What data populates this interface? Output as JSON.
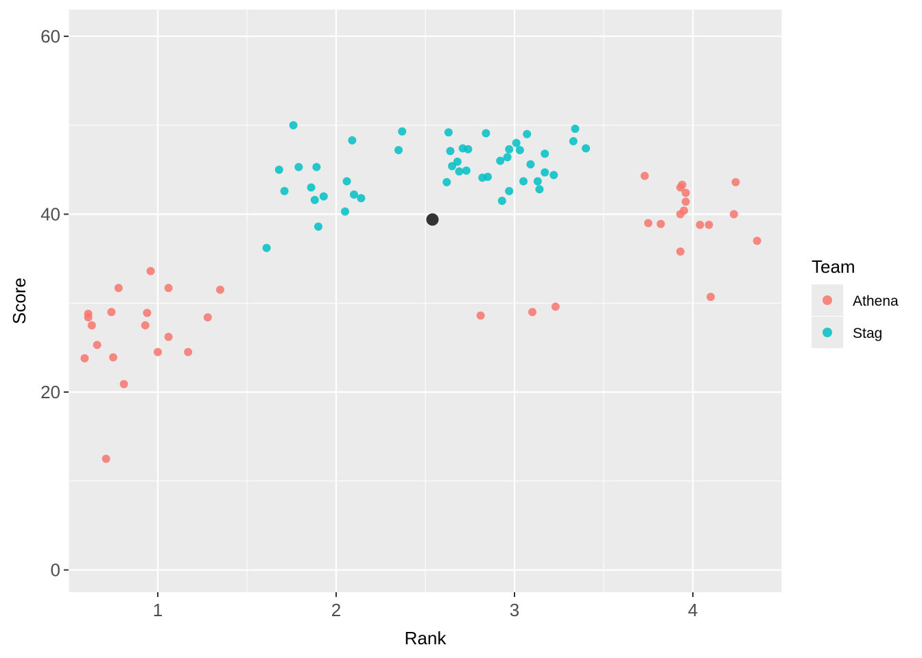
{
  "chart_data": {
    "type": "scatter",
    "xlabel": "Rank",
    "ylabel": "Score",
    "xlim": [
      0.5,
      4.5
    ],
    "ylim": [
      -2.5,
      63
    ],
    "x_ticks": [
      1,
      2,
      3,
      4
    ],
    "x_tick_labels": [
      "1",
      "2",
      "3",
      "4"
    ],
    "y_ticks": [
      0,
      20,
      40,
      60
    ],
    "y_tick_labels": [
      "0",
      "20",
      "40",
      "60"
    ],
    "grid": true,
    "background": "#ebebeb",
    "legend": {
      "title": "Team",
      "position": "right",
      "entries": [
        {
          "label": "Athena",
          "color": "#f8766d"
        },
        {
          "label": "Stag",
          "color": "#00bfc4"
        }
      ]
    },
    "series": [
      {
        "name": "Athena",
        "color": "#f8766d",
        "points": [
          [
            0.59,
            23.8
          ],
          [
            0.61,
            28.4
          ],
          [
            0.61,
            28.8
          ],
          [
            0.63,
            27.5
          ],
          [
            0.66,
            25.3
          ],
          [
            0.71,
            12.5
          ],
          [
            0.74,
            29.0
          ],
          [
            0.75,
            23.9
          ],
          [
            0.78,
            31.7
          ],
          [
            0.81,
            20.9
          ],
          [
            0.93,
            27.5
          ],
          [
            0.94,
            28.9
          ],
          [
            0.96,
            33.6
          ],
          [
            1.0,
            24.5
          ],
          [
            1.06,
            31.7
          ],
          [
            1.06,
            26.2
          ],
          [
            1.17,
            24.5
          ],
          [
            1.28,
            28.4
          ],
          [
            1.35,
            31.5
          ],
          [
            2.81,
            28.6
          ],
          [
            3.1,
            29.0
          ],
          [
            3.23,
            29.6
          ],
          [
            3.73,
            44.3
          ],
          [
            3.75,
            39.0
          ],
          [
            3.82,
            38.9
          ],
          [
            3.93,
            43.0
          ],
          [
            3.94,
            43.3
          ],
          [
            3.93,
            40.0
          ],
          [
            3.93,
            35.8
          ],
          [
            3.95,
            40.4
          ],
          [
            3.96,
            42.4
          ],
          [
            3.96,
            41.4
          ],
          [
            4.04,
            38.8
          ],
          [
            4.09,
            38.8
          ],
          [
            4.1,
            30.7
          ],
          [
            4.23,
            40.0
          ],
          [
            4.24,
            43.6
          ],
          [
            4.36,
            37.0
          ]
        ]
      },
      {
        "name": "Stag",
        "color": "#00bfc4",
        "points": [
          [
            1.61,
            36.2
          ],
          [
            1.68,
            45.0
          ],
          [
            1.71,
            42.6
          ],
          [
            1.76,
            50.0
          ],
          [
            1.79,
            45.3
          ],
          [
            1.86,
            43.0
          ],
          [
            1.88,
            41.6
          ],
          [
            1.89,
            45.3
          ],
          [
            1.9,
            38.6
          ],
          [
            1.93,
            42.0
          ],
          [
            2.05,
            40.3
          ],
          [
            2.06,
            43.7
          ],
          [
            2.09,
            48.3
          ],
          [
            2.1,
            42.2
          ],
          [
            2.14,
            41.8
          ],
          [
            2.35,
            47.2
          ],
          [
            2.37,
            49.3
          ],
          [
            2.62,
            43.6
          ],
          [
            2.63,
            49.2
          ],
          [
            2.64,
            47.1
          ],
          [
            2.65,
            45.4
          ],
          [
            2.68,
            45.9
          ],
          [
            2.69,
            44.8
          ],
          [
            2.71,
            47.4
          ],
          [
            2.73,
            44.9
          ],
          [
            2.74,
            47.3
          ],
          [
            2.82,
            44.1
          ],
          [
            2.84,
            49.1
          ],
          [
            2.85,
            44.2
          ],
          [
            2.92,
            46.0
          ],
          [
            2.93,
            41.5
          ],
          [
            2.96,
            46.4
          ],
          [
            2.97,
            47.3
          ],
          [
            2.97,
            42.6
          ],
          [
            3.01,
            48.0
          ],
          [
            3.03,
            47.2
          ],
          [
            3.05,
            43.7
          ],
          [
            3.07,
            49.0
          ],
          [
            3.09,
            45.6
          ],
          [
            3.13,
            43.7
          ],
          [
            3.14,
            42.8
          ],
          [
            3.17,
            44.7
          ],
          [
            3.17,
            46.8
          ],
          [
            3.22,
            44.4
          ],
          [
            3.33,
            48.2
          ],
          [
            3.34,
            49.6
          ],
          [
            3.4,
            47.4
          ]
        ]
      },
      {
        "name": "",
        "color": "#333333",
        "points": [
          [
            2.54,
            39.4
          ]
        ]
      }
    ]
  }
}
